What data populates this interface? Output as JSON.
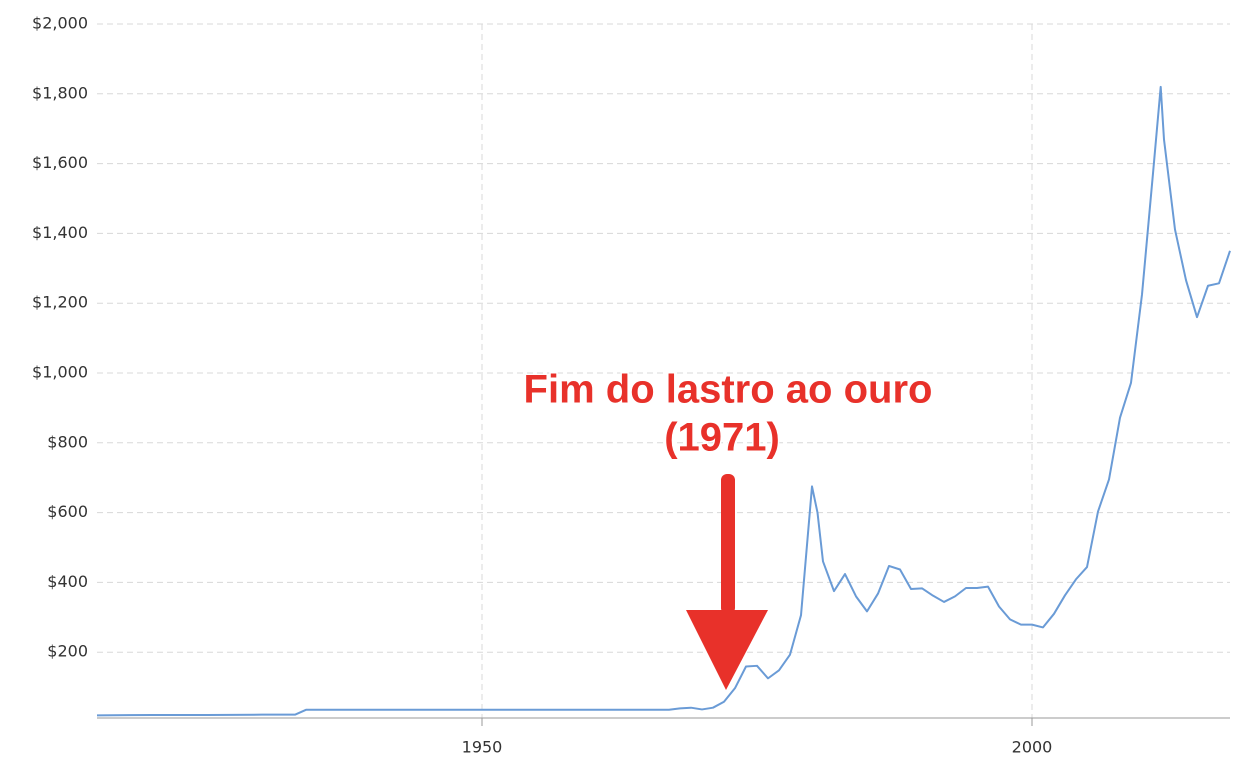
{
  "chart_data": {
    "type": "line",
    "annotations": [
      "Fim do lastro ao ouro",
      "(1971)"
    ],
    "x": [
      1915,
      1920,
      1925,
      1930,
      1933,
      1934,
      1940,
      1945,
      1950,
      1955,
      1960,
      1965,
      1967,
      1968,
      1969,
      1970,
      1971,
      1972,
      1973,
      1974,
      1975,
      1976,
      1977,
      1978,
      1979,
      1980,
      1980.5,
      1981,
      1982,
      1983,
      1984,
      1985,
      1986,
      1987,
      1988,
      1989,
      1990,
      1991,
      1992,
      1993,
      1994,
      1995,
      1996,
      1997,
      1998,
      1999,
      2000,
      2001,
      2002,
      2003,
      2004,
      2005,
      2006,
      2007,
      2008,
      2009,
      2010,
      2011,
      2011.7,
      2012,
      2013,
      2014,
      2015,
      2016,
      2017,
      2018
    ],
    "series": [
      {
        "color": "#6a9bd6",
        "values": [
          19,
          20,
          20,
          21,
          21,
          35,
          35,
          35,
          35,
          35,
          35,
          35,
          35,
          39,
          41,
          36,
          41,
          58,
          97,
          159,
          161,
          125,
          148,
          193,
          306,
          675,
          600,
          460,
          375,
          424,
          360,
          317,
          368,
          447,
          437,
          381,
          383,
          362,
          344,
          360,
          384,
          384,
          388,
          331,
          294,
          279,
          279,
          271,
          310,
          363,
          409,
          444,
          603,
          695,
          872,
          972,
          1225,
          1572,
          1820,
          1669,
          1411,
          1266,
          1160,
          1250,
          1257,
          1350
        ]
      }
    ],
    "xlim": [
      1915,
      2018
    ],
    "ylim": [
      0,
      2000
    ],
    "xticks": [
      1950,
      2000
    ],
    "yticks": [
      {
        "value": 200,
        "label": "$200"
      },
      {
        "value": 400,
        "label": "$400"
      },
      {
        "value": 600,
        "label": "$600"
      },
      {
        "value": 800,
        "label": "$800"
      },
      {
        "value": 1000,
        "label": "$1,000"
      },
      {
        "value": 1200,
        "label": "$1,200"
      },
      {
        "value": 1400,
        "label": "$1,400"
      },
      {
        "value": 1600,
        "label": "$1,600"
      },
      {
        "value": 1800,
        "label": "$1,800"
      },
      {
        "value": 2000,
        "label": "$2,000"
      }
    ],
    "grid": true
  }
}
